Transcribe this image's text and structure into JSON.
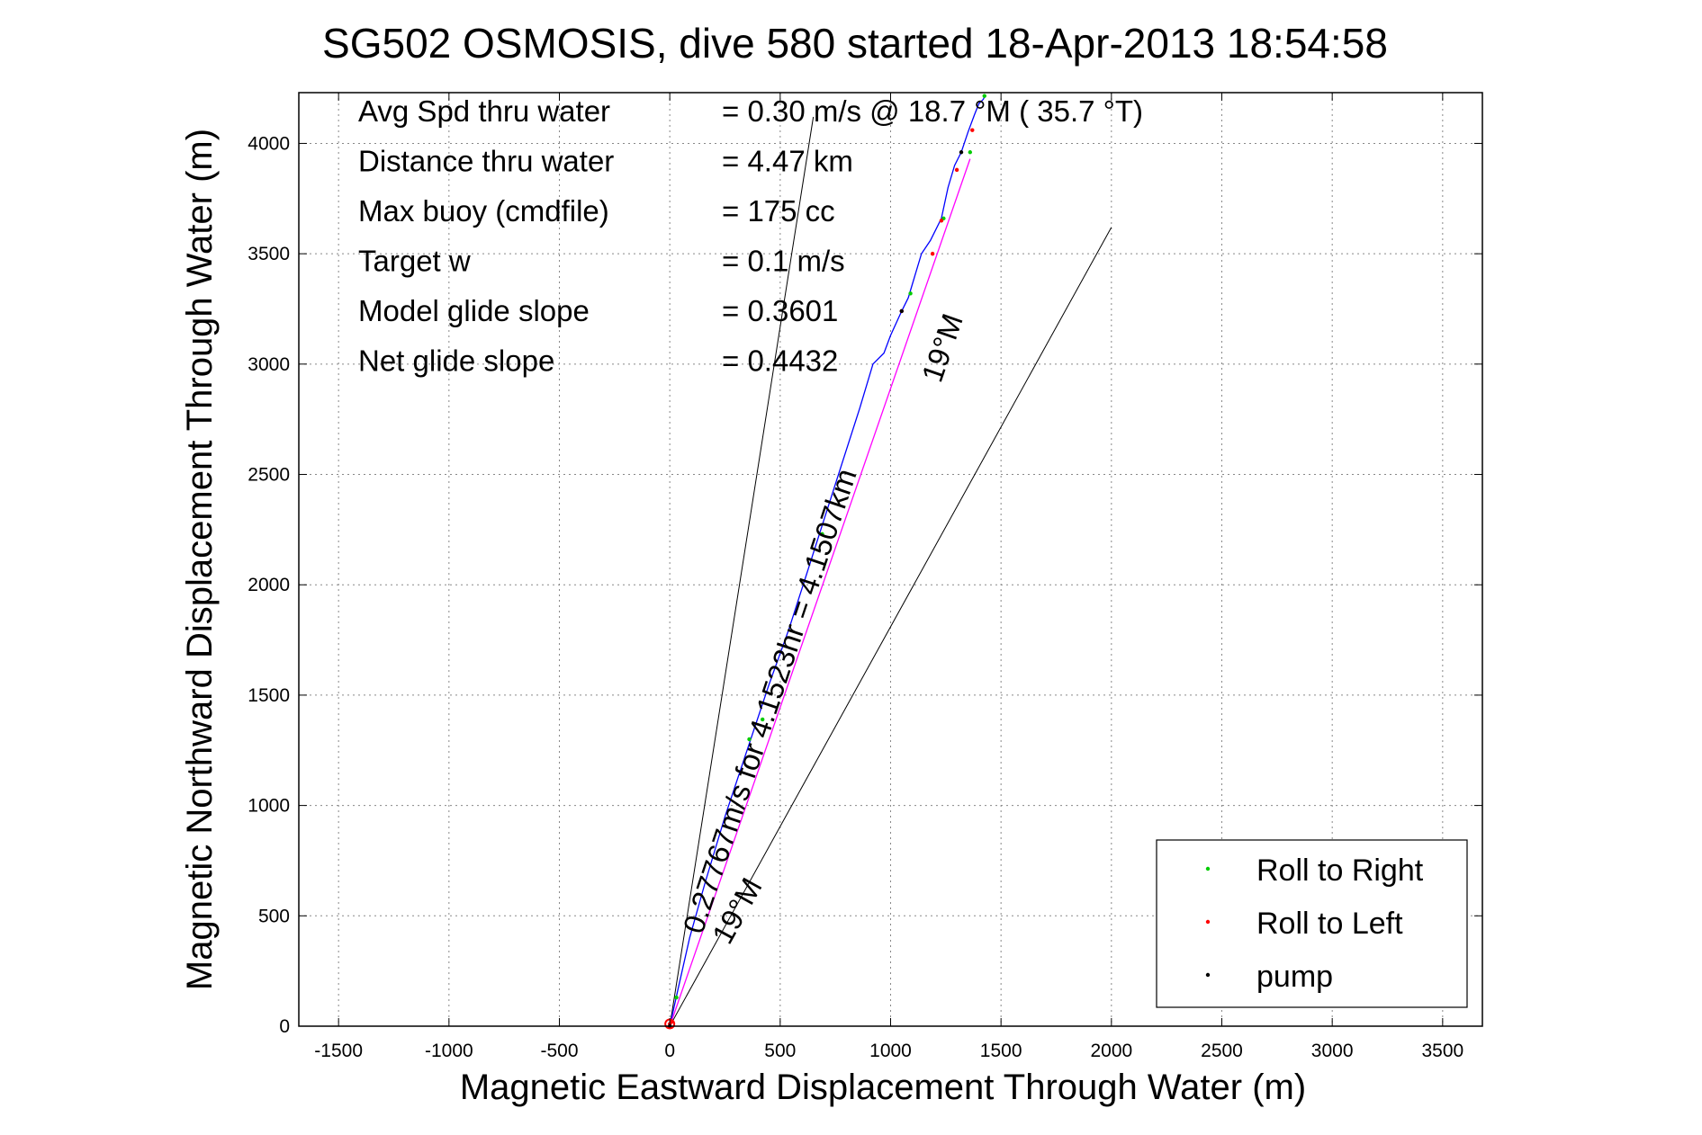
{
  "chart_data": {
    "type": "line",
    "title": "SG502 OSMOSIS, dive 580 started 18-Apr-2013 18:54:58",
    "xlabel": "Magnetic Eastward Displacement Through Water (m)",
    "ylabel": "Magnetic Northward Displacement Through Water (m)",
    "xlim": [
      -1680,
      3680
    ],
    "ylim": [
      0,
      4230
    ],
    "xticks": [
      -1500,
      -1000,
      -500,
      0,
      500,
      1000,
      1500,
      2000,
      2500,
      3000,
      3500
    ],
    "yticks": [
      0,
      500,
      1000,
      1500,
      2000,
      2500,
      3000,
      3500,
      4000
    ],
    "grid": true,
    "legend_position": "bottom-right",
    "stats": [
      {
        "label": "Avg Spd thru water",
        "value": "=  0.30 m/s @   18.7 °M ( 35.7 °T)"
      },
      {
        "label": "Distance thru water",
        "value": "=  4.47 km"
      },
      {
        "label": "Max buoy (cmdfile)",
        "value": "= 175 cc"
      },
      {
        "label": "Target w",
        "value": "= 0.1 m/s"
      },
      {
        "label": "Model glide slope",
        "value": "= 0.3601"
      },
      {
        "label": "Net glide slope",
        "value": "= 0.4432"
      }
    ],
    "annotations": {
      "current": "0.27767m/s for 4.1523hr = 4.1507km",
      "heading_upper": "19°M",
      "heading_lower": "19°M"
    },
    "legend": [
      {
        "label": "Roll to Right",
        "color": "#00cc00"
      },
      {
        "label": "Roll to Left",
        "color": "#ff0000"
      },
      {
        "label": "pump",
        "color": "#000000"
      }
    ],
    "guide_lines": [
      {
        "x": [
          0,
          650
        ],
        "y": [
          0,
          4120
        ]
      },
      {
        "x": [
          0,
          2000
        ],
        "y": [
          0,
          3620
        ]
      }
    ],
    "series": [
      {
        "name": "track",
        "color": "#0000ff",
        "x": [
          0,
          40,
          90,
          160,
          250,
          350,
          450,
          540,
          620,
          700,
          780,
          860,
          920,
          970,
          1000,
          1050,
          1080,
          1140,
          1180,
          1230,
          1260,
          1290,
          1320,
          1350,
          1380,
          1400,
          1420,
          1430
        ],
        "y": [
          0,
          180,
          400,
          650,
          950,
          1250,
          1550,
          1800,
          2050,
          2300,
          2550,
          2800,
          3000,
          3050,
          3130,
          3240,
          3300,
          3500,
          3560,
          3660,
          3800,
          3900,
          3960,
          4050,
          4130,
          4180,
          4200,
          4220
        ]
      },
      {
        "name": "model",
        "color": "#ff00ff",
        "x": [
          0,
          1360
        ],
        "y": [
          0,
          3930
        ]
      }
    ],
    "roll_right": {
      "x": [
        30,
        360,
        420,
        690,
        1090,
        1240,
        1360,
        1425
      ],
      "y": [
        130,
        1300,
        1390,
        2230,
        3320,
        3660,
        3960,
        4215
      ]
    },
    "roll_left": {
      "x": [
        0,
        10,
        1050,
        1190,
        1230,
        1300,
        1370
      ],
      "y": [
        10,
        20,
        3240,
        3500,
        3650,
        3880,
        4060
      ]
    },
    "pump": {
      "x": [
        0,
        1050,
        1320
      ],
      "y": [
        0,
        3240,
        3960
      ]
    }
  }
}
